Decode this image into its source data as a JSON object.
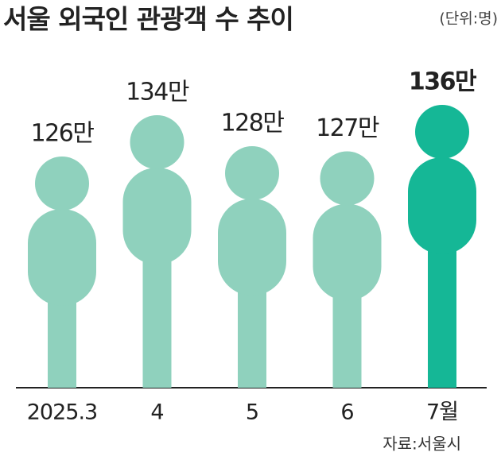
{
  "chart_data": {
    "type": "pictogram",
    "title": "서울 외국인 관광객 수 추이",
    "unit": "(단위:명)",
    "source": "자료:서울시",
    "categories": [
      "2025.3",
      "4",
      "5",
      "6",
      "7월"
    ],
    "values": [
      126,
      134,
      128,
      127,
      136
    ],
    "value_labels": [
      "126만",
      "134만",
      "128만",
      "127만",
      "136만"
    ],
    "colors": [
      "#8fd1bd",
      "#8fd1bd",
      "#8fd1bd",
      "#8fd1bd",
      "#15b796"
    ],
    "highlight": 4
  }
}
